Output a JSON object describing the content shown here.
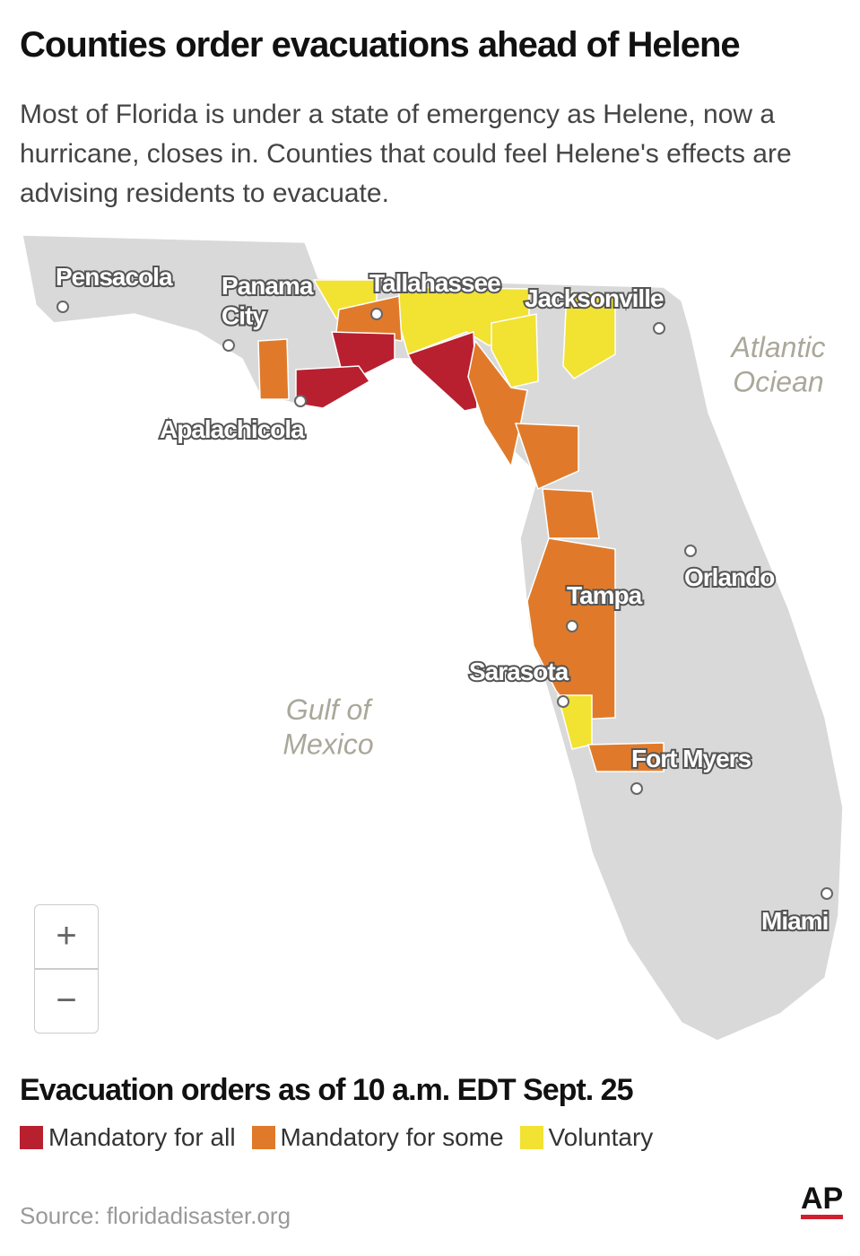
{
  "header": {
    "title": "Counties order evacuations ahead of Helene",
    "subtitle": "Most of Florida is under a state of emergency as Helene, now a hurricane, closes in. Counties that could feel Helene's effects are advising residents to evacuate."
  },
  "map": {
    "cities": [
      "Pensacola",
      "Panama City",
      "Tallahassee",
      "Jacksonville",
      "Apalachicola",
      "Orlando",
      "Tampa",
      "Sarasota",
      "Fort Myers",
      "Miami"
    ],
    "water": [
      "Atlantic Ociean",
      "Gulf of Mexico"
    ],
    "zoom": [
      "+",
      "−"
    ]
  },
  "legend": {
    "title": "Evacuation orders as of 10 a.m. EDT Sept. 25",
    "items": [
      {
        "name": "Mandatory for all",
        "color": "#b8202f"
      },
      {
        "name": "Mandatory for some",
        "color": "#e07a2a"
      },
      {
        "name": "Voluntary",
        "color": "#f2e232"
      }
    ]
  },
  "footer": {
    "source": "Source: floridadisaster.org",
    "logo": "AP"
  }
}
